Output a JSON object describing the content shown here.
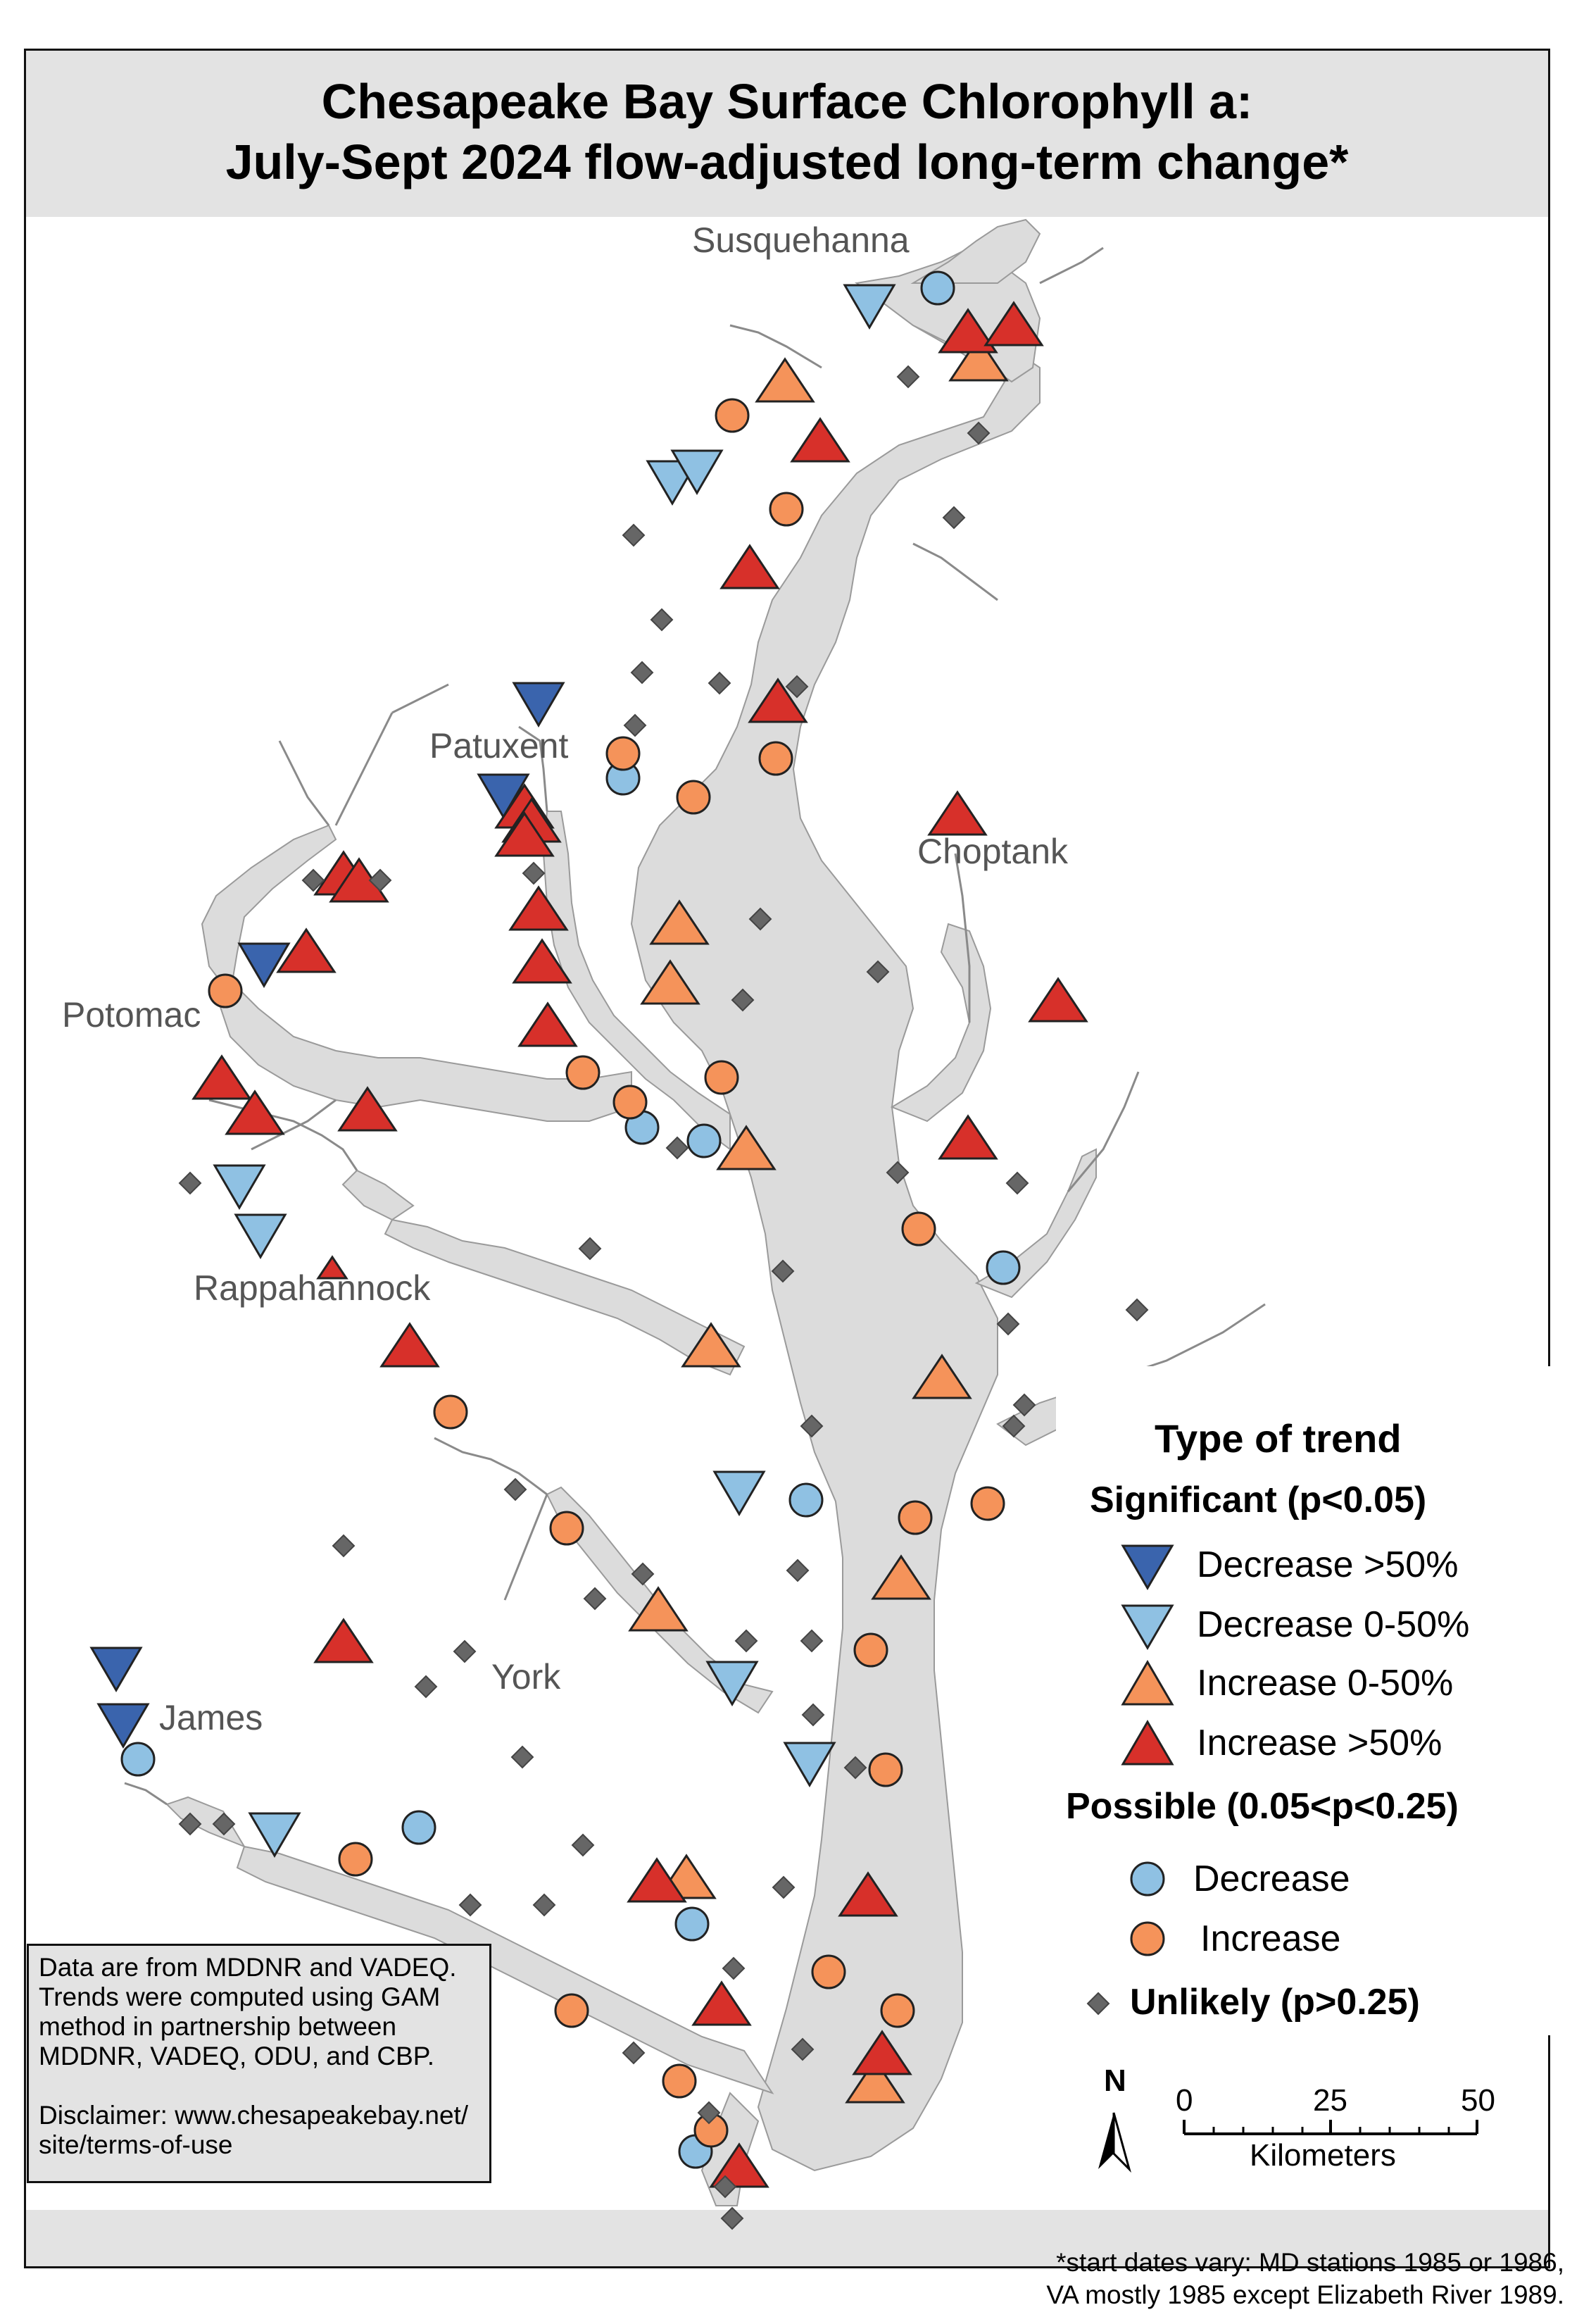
{
  "title": {
    "line1": "Chesapeake Bay Surface Chlorophyll a:",
    "line2": "July-Sept 2024 flow-adjusted long-term change*"
  },
  "places": {
    "susquehanna": "Susquehanna",
    "patuxent": "Patuxent",
    "choptank": "Choptank",
    "potomac": "Potomac",
    "rappahannock": "Rappahannock",
    "york": "York",
    "james": "James"
  },
  "legend": {
    "heading": "Type of trend",
    "significant_heading": "Significant (p<0.05)",
    "possible_heading": "Possible (0.05<p<0.25)",
    "items": {
      "dec_large": "Decrease >50%",
      "dec_small": "Decrease 0-50%",
      "inc_small": "Increase 0-50%",
      "inc_large": "Increase >50%",
      "poss_dec": "Decrease",
      "poss_inc": "Increase",
      "unlikely": "Unlikely (p>0.25)"
    }
  },
  "info_box": {
    "lines": [
      "Data are from MDDNR and VADEQ.",
      "Trends were computed using GAM",
      "method in partnership between",
      "MDDNR, VADEQ, ODU, and CBP.",
      "",
      "Disclaimer: www.chesapeakebay.net/",
      "site/terms-of-use"
    ]
  },
  "footnote": {
    "line1": "*start dates vary: MD stations 1985 or 1986,",
    "line2": "VA mostly 1985 except Elizabeth River 1989."
  },
  "scale_bar": {
    "north_label": "N",
    "ticks": [
      "0",
      "25",
      "50"
    ],
    "unit": "Kilometers"
  },
  "colors": {
    "dec_large": "#3a64ad",
    "dec_small": "#8fc1e3",
    "inc_small": "#f5935a",
    "inc_large": "#d7302a",
    "poss_dec": "#8fc1e3",
    "poss_inc": "#f5935a",
    "unlikely": "#666666",
    "water": "#dcdcdc",
    "land": "#ffffff"
  }
}
